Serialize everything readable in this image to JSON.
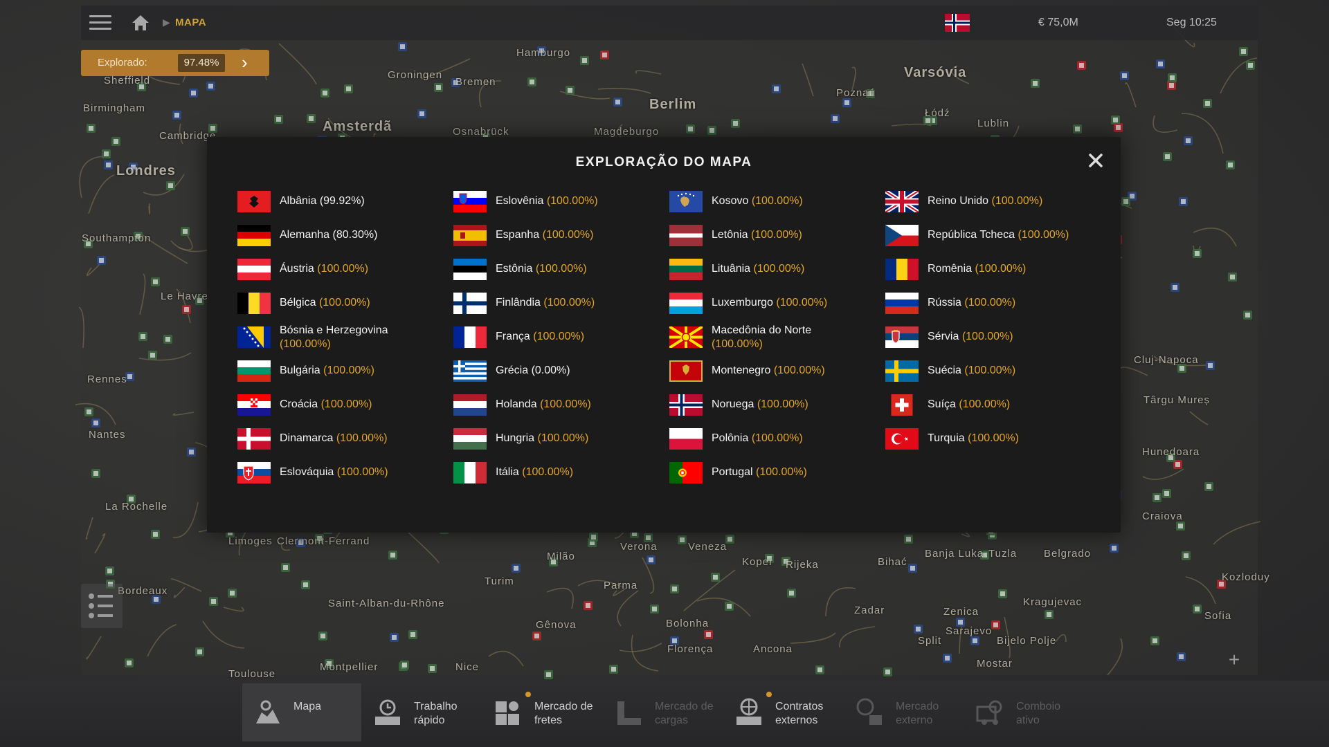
{
  "topbar": {
    "breadcrumb": "MAPA",
    "money": "€ 75,0M",
    "clock": "Seg 10:25"
  },
  "explored": {
    "label": "Explorado:",
    "value": "97.48%"
  },
  "map_labels": [
    "Sheffield",
    "Birmingham",
    "Cambridge",
    "Londres",
    "Southampton",
    "Groningen",
    "Amsterdã",
    "Bremen",
    "Hamburgo",
    "Osnabrück",
    "Magdeburgo",
    "Berlim",
    "Poznań",
    "Varsóvia",
    "Łódź",
    "Lublin",
    "Le Havre",
    "Rennes",
    "Nantes",
    "La Rochelle",
    "Limoges",
    "Clermont-Ferrand",
    "Bordeaux",
    "Saint-Alban-du-Rhône",
    "Montpellier",
    "Toulouse",
    "Nice",
    "Turim",
    "Milão",
    "Verona",
    "Veneza",
    "Gênova",
    "Parma",
    "Bolonha",
    "Florença",
    "Ancona",
    "Koper",
    "Rijeka",
    "Zadar",
    "Bihać",
    "Banja Luka",
    "Tuzla",
    "Belgrado",
    "Zenica",
    "Sarajevo",
    "Kragujevac",
    "Bijelo Polje",
    "Mostar",
    "Split",
    "Cluj-Napoca",
    "Târgu Mureș",
    "Hunedoara",
    "Craiova",
    "Sofia",
    "Kozloduy"
  ],
  "modal": {
    "title": "EXPLORAÇÃO DO MAPA",
    "countries": [
      {
        "name": "Albânia",
        "pct": "(99.92%)",
        "flag": "albania",
        "highlight": false
      },
      {
        "name": "Alemanha",
        "pct": "(80.30%)",
        "flag": "germany",
        "highlight": false
      },
      {
        "name": "Áustria",
        "pct": "(100.00%)",
        "flag": "austria",
        "highlight": true
      },
      {
        "name": "Bélgica",
        "pct": "(100.00%)",
        "flag": "belgium",
        "highlight": true
      },
      {
        "name": "Bósnia e Herzegovina",
        "pct": "(100.00%)",
        "flag": "bosnia",
        "highlight": true
      },
      {
        "name": "Bulgária",
        "pct": "(100.00%)",
        "flag": "bulgaria",
        "highlight": true
      },
      {
        "name": "Croácia",
        "pct": "(100.00%)",
        "flag": "croatia",
        "highlight": true
      },
      {
        "name": "Dinamarca",
        "pct": "(100.00%)",
        "flag": "denmark",
        "highlight": true
      },
      {
        "name": "Eslováquia",
        "pct": "(100.00%)",
        "flag": "slovakia",
        "highlight": true
      },
      {
        "name": "Eslovênia",
        "pct": "(100.00%)",
        "flag": "slovenia",
        "highlight": true
      },
      {
        "name": "Espanha",
        "pct": "(100.00%)",
        "flag": "spain",
        "highlight": true
      },
      {
        "name": "Estônia",
        "pct": "(100.00%)",
        "flag": "estonia",
        "highlight": true
      },
      {
        "name": "Finlândia",
        "pct": "(100.00%)",
        "flag": "finland",
        "highlight": true
      },
      {
        "name": "França",
        "pct": "(100.00%)",
        "flag": "france",
        "highlight": true
      },
      {
        "name": "Grécia",
        "pct": "(0.00%)",
        "flag": "greece",
        "highlight": false
      },
      {
        "name": "Holanda",
        "pct": "(100.00%)",
        "flag": "netherlands",
        "highlight": true
      },
      {
        "name": "Hungria",
        "pct": "(100.00%)",
        "flag": "hungary",
        "highlight": true
      },
      {
        "name": "Itália",
        "pct": "(100.00%)",
        "flag": "italy",
        "highlight": true
      },
      {
        "name": "Kosovo",
        "pct": "(100.00%)",
        "flag": "kosovo",
        "highlight": true
      },
      {
        "name": "Letônia",
        "pct": "(100.00%)",
        "flag": "latvia",
        "highlight": true
      },
      {
        "name": "Lituânia",
        "pct": "(100.00%)",
        "flag": "lithuania",
        "highlight": true
      },
      {
        "name": "Luxemburgo",
        "pct": "(100.00%)",
        "flag": "luxembourg",
        "highlight": true
      },
      {
        "name": "Macedônia do Norte",
        "pct": "(100.00%)",
        "flag": "north-macedonia",
        "highlight": true
      },
      {
        "name": "Montenegro",
        "pct": "(100.00%)",
        "flag": "montenegro",
        "highlight": true
      },
      {
        "name": "Noruega",
        "pct": "(100.00%)",
        "flag": "norway",
        "highlight": true
      },
      {
        "name": "Polônia",
        "pct": "(100.00%)",
        "flag": "poland",
        "highlight": true
      },
      {
        "name": "Portugal",
        "pct": "(100.00%)",
        "flag": "portugal",
        "highlight": true
      },
      {
        "name": "Reino Unido",
        "pct": "(100.00%)",
        "flag": "united-kingdom",
        "highlight": true
      },
      {
        "name": "República Tcheca",
        "pct": "(100.00%)",
        "flag": "czech-republic",
        "highlight": true
      },
      {
        "name": "Romênia",
        "pct": "(100.00%)",
        "flag": "romania",
        "highlight": true
      },
      {
        "name": "Rússia",
        "pct": "(100.00%)",
        "flag": "russia",
        "highlight": true
      },
      {
        "name": "Sérvia",
        "pct": "(100.00%)",
        "flag": "serbia",
        "highlight": true
      },
      {
        "name": "Suécia",
        "pct": "(100.00%)",
        "flag": "sweden",
        "highlight": true
      },
      {
        "name": "Suíça",
        "pct": "(100.00%)",
        "flag": "switzerland",
        "highlight": true
      },
      {
        "name": "Turquia",
        "pct": "(100.00%)",
        "flag": "turkey",
        "highlight": true
      }
    ]
  },
  "bottomnav": [
    {
      "label": "Mapa",
      "icon": "map-icon",
      "active": true,
      "dim": false
    },
    {
      "label": "Trabalho rápido",
      "icon": "quick-job-icon",
      "active": false,
      "dim": false
    },
    {
      "label": "Mercado de fretes",
      "icon": "freight-market-icon",
      "active": false,
      "dim": false
    },
    {
      "label": "Mercado de cargas",
      "icon": "cargo-market-icon",
      "active": false,
      "dim": true
    },
    {
      "label": "Contratos externos",
      "icon": "external-contracts-icon",
      "active": false,
      "dim": false
    },
    {
      "label": "Mercado externo",
      "icon": "external-market-icon",
      "active": false,
      "dim": true
    },
    {
      "label": "Comboio ativo",
      "icon": "active-convoy-icon",
      "active": false,
      "dim": true
    }
  ],
  "colors": {
    "accent": "#e3a62a",
    "explored_bg": "#b17a2c",
    "modal_bg": "#1b1b1b"
  }
}
